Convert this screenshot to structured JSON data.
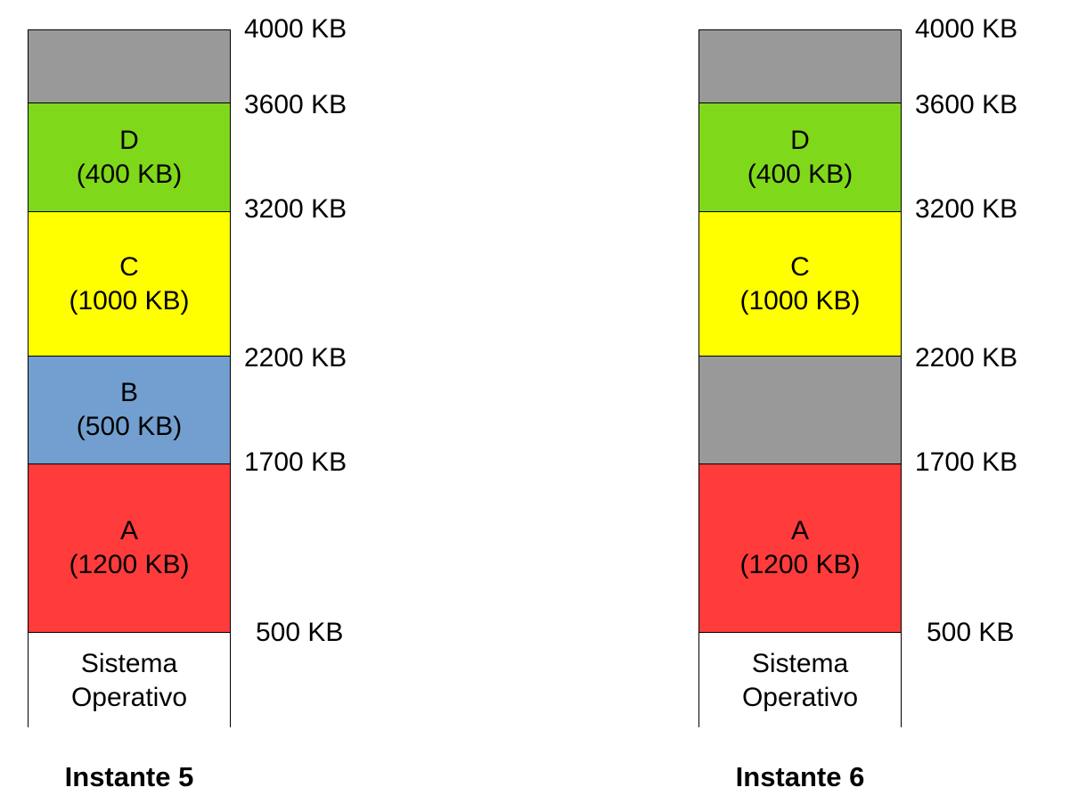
{
  "colors": {
    "free": "#999999",
    "D": "#80d81a",
    "C": "#ffff00",
    "B": "#729fcf",
    "A": "#ff3b3b",
    "os": "#ffffff"
  },
  "instants": [
    {
      "caption": "Instante 5",
      "blocks": [
        {
          "kind": "free",
          "name": "",
          "size": "",
          "from_kb": 3600,
          "to_kb": 4000
        },
        {
          "kind": "D",
          "name": "D",
          "size": "(400 KB)",
          "from_kb": 3200,
          "to_kb": 3600
        },
        {
          "kind": "C",
          "name": "C",
          "size": "(1000 KB)",
          "from_kb": 2200,
          "to_kb": 3200
        },
        {
          "kind": "B",
          "name": "B",
          "size": "(500 KB)",
          "from_kb": 1700,
          "to_kb": 2200
        },
        {
          "kind": "A",
          "name": "A",
          "size": "(1200 KB)",
          "from_kb": 500,
          "to_kb": 1700
        },
        {
          "kind": "os",
          "name": "Sistema",
          "size": "Operativo",
          "from_kb": 0,
          "to_kb": 500
        }
      ],
      "addresses": [
        "4000 KB",
        "3600 KB",
        "3200 KB",
        "2200 KB",
        "1700 KB",
        "500 KB"
      ]
    },
    {
      "caption": "Instante 6",
      "blocks": [
        {
          "kind": "free",
          "name": "",
          "size": "",
          "from_kb": 3600,
          "to_kb": 4000
        },
        {
          "kind": "D",
          "name": "D",
          "size": "(400 KB)",
          "from_kb": 3200,
          "to_kb": 3600
        },
        {
          "kind": "C",
          "name": "C",
          "size": "(1000 KB)",
          "from_kb": 2200,
          "to_kb": 3200
        },
        {
          "kind": "free",
          "name": "",
          "size": "",
          "from_kb": 1700,
          "to_kb": 2200
        },
        {
          "kind": "A",
          "name": "A",
          "size": "(1200 KB)",
          "from_kb": 500,
          "to_kb": 1700
        },
        {
          "kind": "os",
          "name": "Sistema",
          "size": "Operativo",
          "from_kb": 0,
          "to_kb": 500
        }
      ],
      "addresses": [
        "4000 KB",
        "3600 KB",
        "3200 KB",
        "2200 KB",
        "1700 KB",
        "500 KB"
      ]
    }
  ]
}
